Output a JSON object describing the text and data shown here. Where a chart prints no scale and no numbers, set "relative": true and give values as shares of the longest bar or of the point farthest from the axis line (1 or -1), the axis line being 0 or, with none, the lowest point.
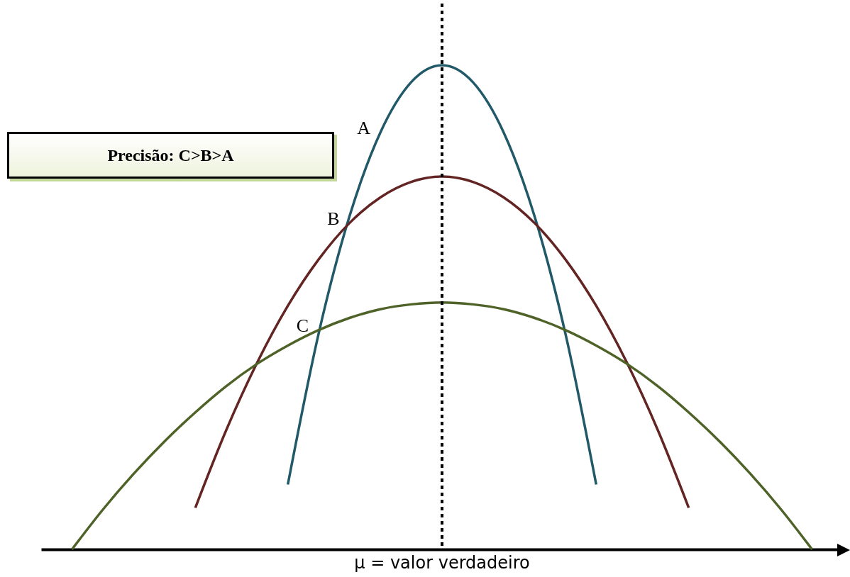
{
  "chart_data": {
    "type": "line",
    "relative": true,
    "xlabel": null,
    "categories": [
      null,
      null,
      null,
      null,
      null,
      null,
      null,
      null,
      null,
      null,
      null,
      null,
      null,
      null,
      null,
      null,
      null,
      null,
      null,
      null,
      null,
      null,
      null,
      null,
      null
    ],
    "series": [
      {
        "name": "A",
        "color": "#215968",
        "values": [
          null,
          null,
          null,
          null,
          null,
          null,
          null,
          0.134,
          0.446,
          0.688,
          0.861,
          0.965,
          1,
          0.965,
          0.861,
          0.688,
          0.446,
          0.134,
          null,
          null,
          null,
          null,
          null,
          null,
          null
        ]
      },
      {
        "name": "B",
        "color": "#632523",
        "values": [
          null,
          null,
          null,
          null,
          0.086,
          0.246,
          0.385,
          0.503,
          0.599,
          0.674,
          0.727,
          0.759,
          0.77,
          0.759,
          0.727,
          0.674,
          0.599,
          0.503,
          0.385,
          0.246,
          0.086,
          null,
          null,
          null,
          null
        ]
      },
      {
        "name": "C",
        "color": "#4f6228",
        "values": [
          0,
          0.082,
          0.156,
          0.223,
          0.283,
          0.337,
          0.383,
          0.421,
          0.453,
          0.478,
          0.496,
          0.506,
          0.51,
          0.506,
          0.496,
          0.478,
          0.453,
          0.421,
          0.383,
          0.337,
          0.283,
          0.223,
          0.156,
          0.082,
          0
        ]
      }
    ],
    "ref_lines": [
      {
        "axis": "x",
        "label": "μ = valor verdadeiro",
        "line_style": "dotted",
        "color": "#000000"
      }
    ],
    "annotations": [
      "Precisão: C>B>A"
    ],
    "legend": false,
    "grid": false
  }
}
